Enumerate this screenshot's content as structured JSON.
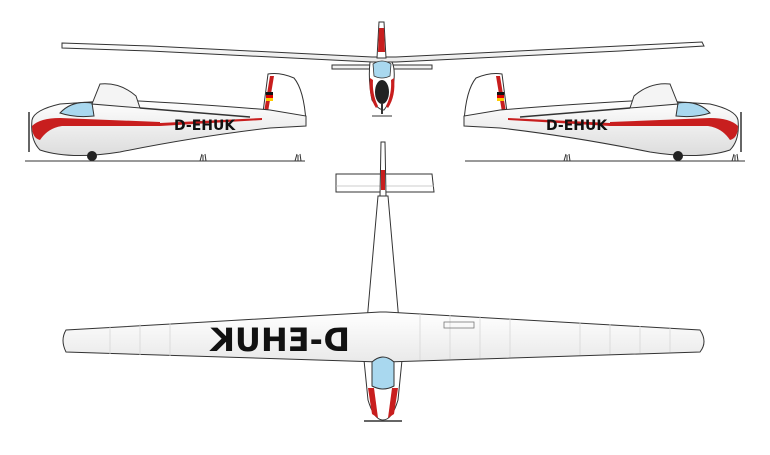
{
  "registration": "D-EHUK",
  "views": {
    "side_left": {
      "registration": "D-EHUK"
    },
    "side_right": {
      "registration": "D-EHUK"
    },
    "top": {
      "registration_underwing": "D-EHUK"
    }
  },
  "colors": {
    "trim": "#c81e1e",
    "canopy": "#a9d8ef",
    "outline": "#333333",
    "body": "#ffffff",
    "shade": "#e6e6e6",
    "flag_black": "#111111",
    "flag_red": "#dd0000",
    "flag_gold": "#ffcc00"
  },
  "icons": [
    "glider-side-view",
    "glider-front-view",
    "glider-top-view",
    "german-flag-icon",
    "grass-tuft-icon"
  ]
}
